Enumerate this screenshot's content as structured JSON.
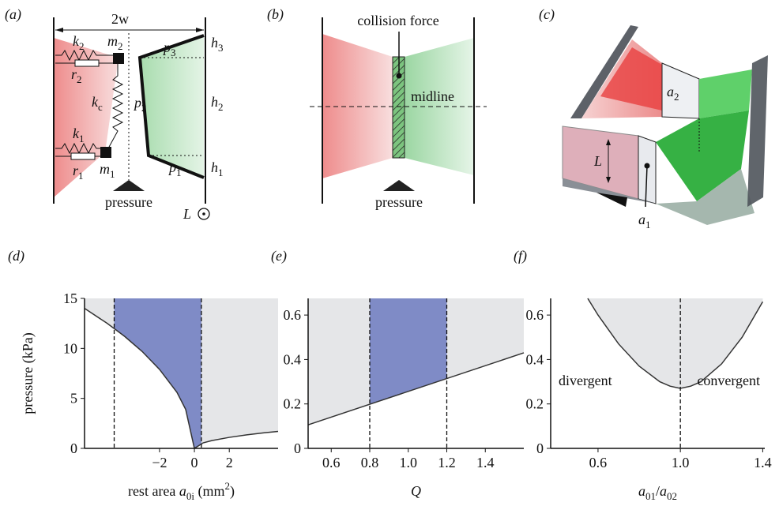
{
  "diagrams": {
    "a": {
      "label": "(a)",
      "width": "2w",
      "k2": {
        "base": "k",
        "sub": "2"
      },
      "m2": {
        "base": "m",
        "sub": "2"
      },
      "r2": {
        "base": "r",
        "sub": "2"
      },
      "kc": {
        "base": "k",
        "sub": "c"
      },
      "k1": {
        "base": "k",
        "sub": "1"
      },
      "m1": {
        "base": "m",
        "sub": "1"
      },
      "r1": {
        "base": "r",
        "sub": "1"
      },
      "p3": {
        "base": "p",
        "sub": "3"
      },
      "p2": {
        "base": "p",
        "sub": "2"
      },
      "p1": {
        "base": "p",
        "sub": "1"
      },
      "h3": {
        "base": "h",
        "sub": "3"
      },
      "h2": {
        "base": "h",
        "sub": "2"
      },
      "h1": {
        "base": "h",
        "sub": "1"
      },
      "pressure": "pressure",
      "length": "L"
    },
    "b": {
      "label": "(b)",
      "collision": "collision force",
      "midline": "midline",
      "pressure": "pressure"
    },
    "c": {
      "label": "(c)",
      "a2": {
        "base": "a",
        "sub": "2"
      },
      "length": "L",
      "a1": {
        "base": "a",
        "sub": "1"
      }
    }
  },
  "chart_data": [
    {
      "type": "line",
      "label": "(d)",
      "ylabel": "pressure (kPa)",
      "xlabel": [
        {
          "text": "rest area "
        },
        {
          "text": "a",
          "italic": true
        },
        {
          "text": "0i",
          "sub": true
        },
        {
          "text": " (mm"
        },
        {
          "text": "2",
          "sup": true
        },
        {
          "text": ")"
        }
      ],
      "x": [
        -6.3,
        -5,
        -4,
        -3,
        -2,
        -1,
        -0.5,
        0,
        0.5,
        1,
        2,
        3,
        4,
        4.8
      ],
      "values": [
        14.0,
        12.5,
        11.2,
        9.7,
        7.9,
        5.6,
        3.9,
        0,
        0.55,
        0.78,
        1.1,
        1.35,
        1.56,
        1.7
      ],
      "color": "#333333",
      "shade": "#e5e6e8",
      "highlight": "#7f8bc6",
      "vlines": [
        -4.6,
        0.4
      ],
      "xlim": [
        -6.3,
        4.8
      ],
      "ylim": [
        0,
        15
      ],
      "xticks": [
        {
          "value": -2,
          "label": "−2"
        },
        0,
        2
      ],
      "yticks": [
        0,
        5,
        10,
        15
      ]
    },
    {
      "type": "line",
      "label": "(e)",
      "xlabel": [
        {
          "text": "Q",
          "italic": true
        }
      ],
      "x": [
        0.48,
        1.6
      ],
      "values": [
        0.106,
        0.43
      ],
      "color": "#333333",
      "shade": "#e5e6e8",
      "highlight": "#7f8bc6",
      "vlines": [
        0.8,
        1.2
      ],
      "xlim": [
        0.48,
        1.6
      ],
      "ylim": [
        0,
        0.675
      ],
      "xticks": [
        0.6,
        0.8,
        {
          "value": 1,
          "label": "1.0"
        },
        1.2,
        1.4
      ],
      "yticks": [
        0,
        0.2,
        0.4,
        0.6
      ]
    },
    {
      "type": "line",
      "label": "(f)",
      "xlabel": [
        {
          "text": "a",
          "italic": true
        },
        {
          "text": "01",
          "sub": true
        },
        {
          "text": "/"
        },
        {
          "text": "a",
          "italic": true
        },
        {
          "text": "02",
          "sub": true
        }
      ],
      "x": [
        0.55,
        0.6,
        0.7,
        0.8,
        0.9,
        0.95,
        1.0,
        1.05,
        1.1,
        1.2,
        1.3,
        1.4
      ],
      "values": [
        0.675,
        0.6,
        0.47,
        0.37,
        0.3,
        0.28,
        0.27,
        0.28,
        0.3,
        0.38,
        0.5,
        0.66
      ],
      "color": "#333333",
      "shade": "#e5e6e8",
      "vlines": [
        1.0
      ],
      "annotations": [
        "divergent",
        "convergent"
      ],
      "xlim": [
        0.37,
        1.41
      ],
      "ylim": [
        0,
        0.675
      ],
      "xticks": [
        0.6,
        {
          "value": 1,
          "label": "1.0"
        },
        1.4
      ],
      "yticks": [
        0,
        0.2,
        0.4,
        0.6
      ]
    }
  ]
}
